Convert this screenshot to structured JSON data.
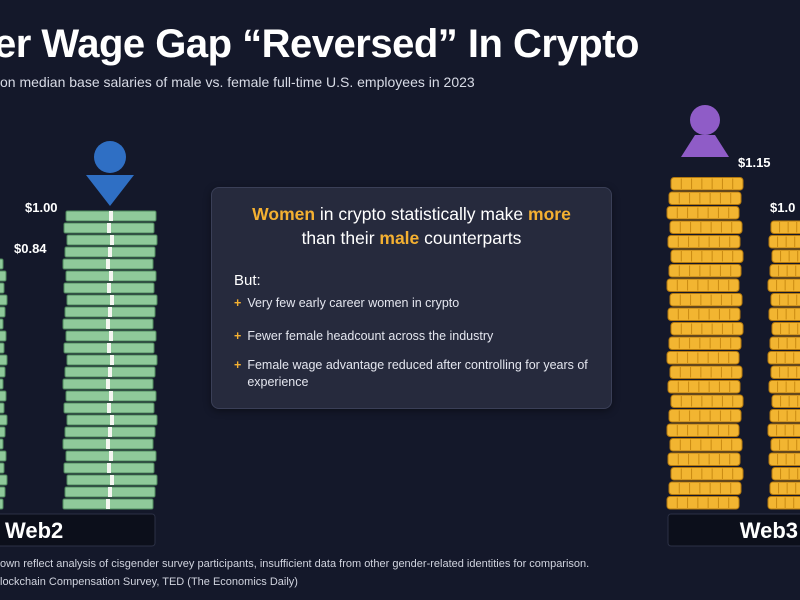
{
  "header": {
    "title": "er Wage Gap “Reversed” In Crypto",
    "subtitle": "on median base salaries of male vs. female full-time U.S. employees in 2023"
  },
  "panel": {
    "headline": {
      "w1": "Women",
      "w2": " in crypto statistically make ",
      "w3": "more",
      "w4": "than their ",
      "w5": "male",
      "w6": " counterparts"
    },
    "but_label": "But:",
    "bullets": [
      "Very few early career women in crypto",
      "Fewer female headcount across the industry",
      "Female wage advantage reduced after controlling for years of experience"
    ]
  },
  "footer": {
    "line1": "own reflect analysis of cisgender survey participants, insufficient data from other gender-related identities for comparison.",
    "line2": "lockchain Compensation Survey, TED (The Economics Daily)"
  },
  "colors": {
    "background": "#14182a",
    "money_green": "#8fc99a",
    "gold": "#f2b531",
    "male_blue": "#2f6fc4",
    "female_purple": "#8f5cc7",
    "accent": "#f4b031"
  },
  "icons": [
    "male-person-icon",
    "female-person-icon"
  ],
  "chart_data": [
    {
      "type": "bar",
      "group": "Web2",
      "categories": [
        "Female",
        "Male"
      ],
      "values": [
        0.84,
        1.0
      ],
      "labels": [
        "$0.84",
        "$1.00"
      ]
    },
    {
      "type": "bar",
      "group": "Web3",
      "categories": [
        "Female",
        "Male"
      ],
      "values": [
        1.15,
        1.0
      ],
      "labels": [
        "$1.15",
        "$1.0"
      ]
    }
  ]
}
